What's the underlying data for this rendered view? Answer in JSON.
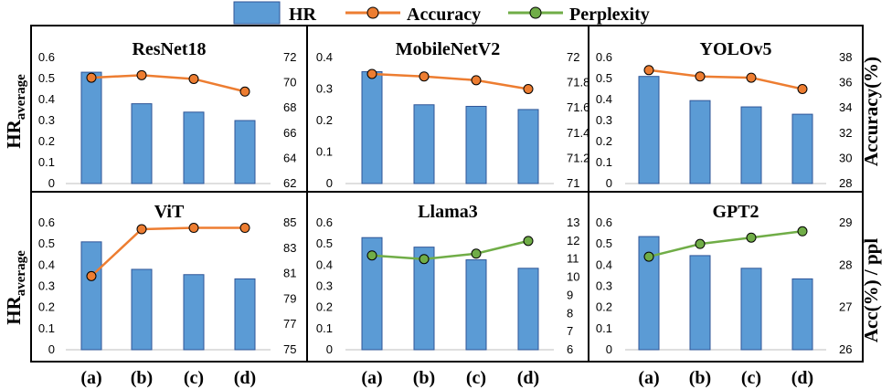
{
  "colors": {
    "bar_fill": "#5b9bd5",
    "bar_stroke": "#2f5597",
    "accuracy_line": "#ed7d31",
    "perplexity_line": "#70ad47",
    "frame": "#000000"
  },
  "legend": {
    "hr": "HR",
    "accuracy": "Accuracy",
    "perplexity": "Perplexity"
  },
  "axis_labels": {
    "left_top_main": "HR",
    "left_top_sub": "average",
    "left_bottom_main": "HR",
    "left_bottom_sub": "average",
    "right_top": "Accuracy(%)",
    "right_bottom": "Acc(%) / ppl"
  },
  "x_categories": [
    "(a)",
    "(b)",
    "(c)",
    "(d)"
  ],
  "chart_data": [
    {
      "type": "bar",
      "title": "ResNet18",
      "categories": [
        "(a)",
        "(b)",
        "(c)",
        "(d)"
      ],
      "hr": [
        0.53,
        0.38,
        0.34,
        0.3
      ],
      "hr_ylim": [
        0,
        0.6
      ],
      "hr_ticks": [
        "0",
        "0.1",
        "0.2",
        "0.3",
        "0.4",
        "0.5",
        "0.6"
      ],
      "line": {
        "name": "Accuracy",
        "values": [
          70.4,
          70.6,
          70.3,
          69.3
        ]
      },
      "line_ylim": [
        62,
        72
      ],
      "line_ticks": [
        "62",
        "64",
        "66",
        "68",
        "70",
        "72"
      ]
    },
    {
      "type": "bar",
      "title": "MobileNetV2",
      "categories": [
        "(a)",
        "(b)",
        "(c)",
        "(d)"
      ],
      "hr": [
        0.355,
        0.25,
        0.245,
        0.235
      ],
      "hr_ylim": [
        0,
        0.4
      ],
      "hr_ticks": [
        "0",
        "0.1",
        "0.2",
        "0.3",
        "0.4"
      ],
      "line": {
        "name": "Accuracy",
        "values": [
          71.87,
          71.85,
          71.82,
          71.75
        ]
      },
      "line_ylim": [
        71,
        72
      ],
      "line_ticks": [
        "71",
        "71.2",
        "71.4",
        "71.6",
        "71.8",
        "72"
      ]
    },
    {
      "type": "bar",
      "title": "YOLOv5",
      "categories": [
        "(a)",
        "(b)",
        "(c)",
        "(d)"
      ],
      "hr": [
        0.51,
        0.395,
        0.365,
        0.33
      ],
      "hr_ylim": [
        0,
        0.6
      ],
      "hr_ticks": [
        "0",
        "0.1",
        "0.2",
        "0.3",
        "0.4",
        "0.5",
        "0.6"
      ],
      "line": {
        "name": "Accuracy",
        "values": [
          37.0,
          36.5,
          36.4,
          35.5
        ]
      },
      "line_ylim": [
        28,
        38
      ],
      "line_ticks": [
        "28",
        "30",
        "32",
        "34",
        "36",
        "38"
      ]
    },
    {
      "type": "bar",
      "title": "ViT",
      "categories": [
        "(a)",
        "(b)",
        "(c)",
        "(d)"
      ],
      "hr": [
        0.51,
        0.38,
        0.355,
        0.335
      ],
      "hr_ylim": [
        0,
        0.6
      ],
      "hr_ticks": [
        "0",
        "0.1",
        "0.2",
        "0.3",
        "0.4",
        "0.5",
        "0.6"
      ],
      "line": {
        "name": "Accuracy",
        "values": [
          80.8,
          84.5,
          84.6,
          84.6
        ]
      },
      "line_ylim": [
        75,
        85
      ],
      "line_ticks": [
        "75",
        "77",
        "79",
        "81",
        "83",
        "85"
      ]
    },
    {
      "type": "bar",
      "title": "Llama3",
      "categories": [
        "(a)",
        "(b)",
        "(c)",
        "(d)"
      ],
      "hr": [
        0.53,
        0.485,
        0.425,
        0.385
      ],
      "hr_ylim": [
        0,
        0.6
      ],
      "hr_ticks": [
        "0",
        "0.1",
        "0.2",
        "0.3",
        "0.4",
        "0.5",
        "0.6"
      ],
      "line": {
        "name": "Perplexity",
        "values": [
          11.2,
          11.0,
          11.3,
          12.0
        ]
      },
      "line_ylim": [
        6,
        13
      ],
      "line_ticks": [
        "6",
        "7",
        "8",
        "9",
        "10",
        "11",
        "12",
        "13"
      ]
    },
    {
      "type": "bar",
      "title": "GPT2",
      "categories": [
        "(a)",
        "(b)",
        "(c)",
        "(d)"
      ],
      "hr": [
        0.535,
        0.445,
        0.385,
        0.335
      ],
      "hr_ylim": [
        0,
        0.6
      ],
      "hr_ticks": [
        "0",
        "0.1",
        "0.2",
        "0.3",
        "0.4",
        "0.5",
        "0.6"
      ],
      "line": {
        "name": "Perplexity",
        "values": [
          28.2,
          28.5,
          28.65,
          28.8
        ]
      },
      "line_ylim": [
        26,
        29
      ],
      "line_ticks": [
        "26",
        "27",
        "28",
        "29"
      ]
    }
  ]
}
